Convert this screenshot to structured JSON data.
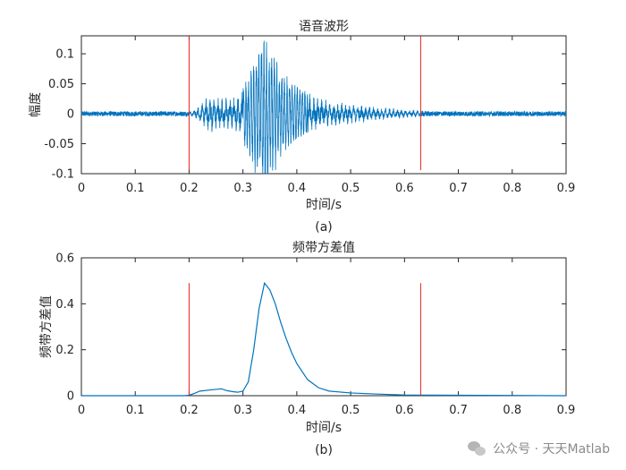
{
  "chart_data": [
    {
      "id": "a",
      "type": "line",
      "title": "语音波形",
      "xlabel": "时间/s",
      "ylabel": "幅度",
      "caption": "(a)",
      "xlim": [
        0,
        0.9
      ],
      "ylim": [
        -0.1,
        0.13
      ],
      "xticks": [
        0,
        0.1,
        0.2,
        0.3,
        0.4,
        0.5,
        0.6,
        0.7,
        0.8,
        0.9
      ],
      "xtick_labels": [
        "0",
        "0.1",
        "0.2",
        "0.3",
        "0.4",
        "0.5",
        "0.6",
        "0.7",
        "0.8",
        "0.9"
      ],
      "yticks": [
        -0.1,
        -0.05,
        0,
        0.05,
        0.1
      ],
      "ytick_labels": [
        "-0.1",
        "-0.05",
        "0",
        "0.05",
        "0.1"
      ],
      "series": [
        {
          "color": "#0072BD",
          "envelope_x": [
            0,
            0.2,
            0.21,
            0.225,
            0.24,
            0.255,
            0.27,
            0.285,
            0.3,
            0.31,
            0.32,
            0.33,
            0.34,
            0.35,
            0.36,
            0.37,
            0.38,
            0.4,
            0.42,
            0.45,
            0.5,
            0.55,
            0.6,
            0.63,
            0.65,
            0.9
          ],
          "envelope_y": [
            0.004,
            0.004,
            0.008,
            0.02,
            0.035,
            0.03,
            0.028,
            0.03,
            0.045,
            0.06,
            0.085,
            0.105,
            0.12,
            0.11,
            0.09,
            0.072,
            0.06,
            0.045,
            0.035,
            0.025,
            0.018,
            0.012,
            0.008,
            0.005,
            0.004,
            0.004
          ]
        }
      ],
      "markers": [
        {
          "x": 0.2,
          "color": "#E2231A"
        },
        {
          "x": 0.63,
          "color": "#E2231A"
        }
      ]
    },
    {
      "id": "b",
      "type": "line",
      "title": "频带方差值",
      "xlabel": "时间/s",
      "ylabel": "频带方差值",
      "caption": "(b)",
      "xlim": [
        0,
        0.9
      ],
      "ylim": [
        0,
        0.6
      ],
      "xticks": [
        0,
        0.1,
        0.2,
        0.3,
        0.4,
        0.5,
        0.6,
        0.7,
        0.8,
        0.9
      ],
      "xtick_labels": [
        "0",
        "0.1",
        "0.2",
        "0.3",
        "0.4",
        "0.5",
        "0.6",
        "0.7",
        "0.8",
        "0.9"
      ],
      "yticks": [
        0,
        0.2,
        0.4,
        0.6
      ],
      "ytick_labels": [
        "0",
        "0.2",
        "0.4",
        "0.6"
      ],
      "series": [
        {
          "color": "#0072BD",
          "x": [
            0,
            0.19,
            0.2,
            0.21,
            0.22,
            0.24,
            0.26,
            0.27,
            0.28,
            0.29,
            0.3,
            0.31,
            0.32,
            0.33,
            0.34,
            0.35,
            0.36,
            0.37,
            0.38,
            0.39,
            0.4,
            0.42,
            0.44,
            0.46,
            0.5,
            0.55,
            0.6,
            0.9
          ],
          "y": [
            0,
            0,
            0.002,
            0.01,
            0.02,
            0.025,
            0.03,
            0.022,
            0.018,
            0.015,
            0.02,
            0.06,
            0.2,
            0.38,
            0.49,
            0.46,
            0.4,
            0.32,
            0.25,
            0.19,
            0.14,
            0.07,
            0.035,
            0.02,
            0.012,
            0.007,
            0.003,
            0
          ]
        }
      ],
      "markers": [
        {
          "x": 0.2,
          "color": "#E2231A",
          "top": 0.49
        },
        {
          "x": 0.63,
          "color": "#E2231A",
          "top": 0.49
        }
      ]
    }
  ],
  "watermark": {
    "text": "公众号 · 天天Matlab",
    "icon": "wechat-icon"
  }
}
